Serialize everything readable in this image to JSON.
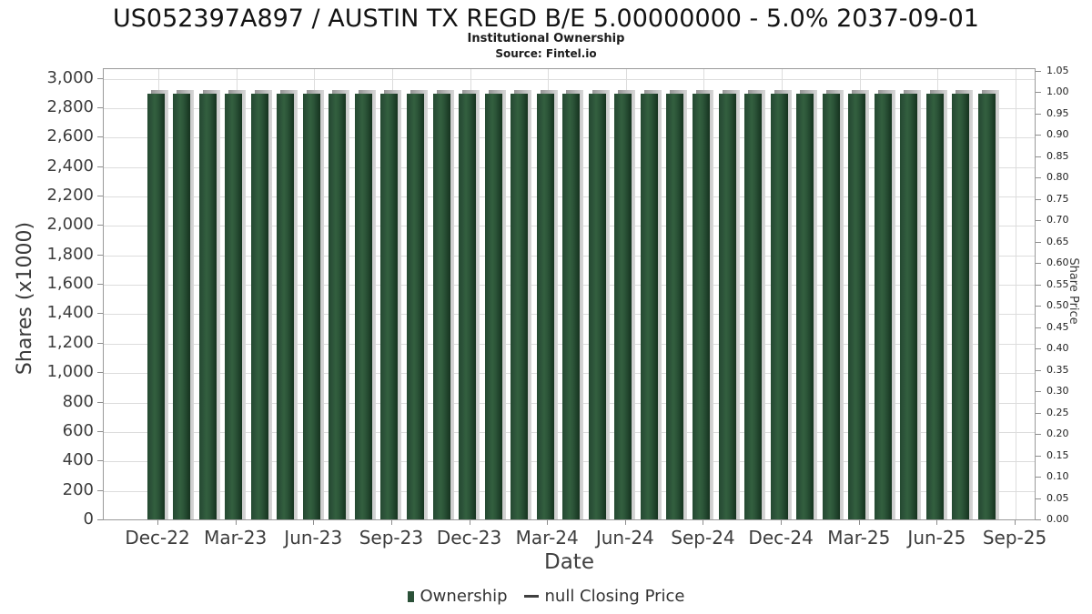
{
  "title": "US052397A897 / AUSTIN TX REGD B/E 5.00000000 - 5.0% 2037-09-01",
  "subtitle": "Institutional Ownership",
  "source": "Source: Fintel.io",
  "chart_data": {
    "type": "bar",
    "title": "US052397A897 / AUSTIN TX REGD B/E 5.00000000 - 5.0% 2037-09-01",
    "subtitle": "Institutional Ownership",
    "source": "Source: Fintel.io",
    "xlabel": "Date",
    "ylabel_left": "Shares (x1000)",
    "ylabel_right": "Share Price",
    "left_axis": {
      "min": 0,
      "max": 3000,
      "step": 200,
      "tick_labels": [
        "0",
        "200",
        "400",
        "600",
        "800",
        "1,000",
        "1,200",
        "1,400",
        "1,600",
        "1,800",
        "2,000",
        "2,200",
        "2,400",
        "2,600",
        "2,800",
        "3,000"
      ]
    },
    "right_axis": {
      "min": 0,
      "max": 1.05,
      "step": 0.05,
      "tick_labels": [
        "0.00",
        "0.05",
        "0.10",
        "0.15",
        "0.20",
        "0.25",
        "0.30",
        "0.35",
        "0.40",
        "0.45",
        "0.50",
        "0.55",
        "0.60",
        "0.65",
        "0.70",
        "0.75",
        "0.80",
        "0.85",
        "0.90",
        "0.95",
        "1.00",
        "1.05"
      ]
    },
    "x_tick_labels": [
      "Dec-22",
      "Mar-23",
      "Jun-23",
      "Sep-23",
      "Dec-23",
      "Mar-24",
      "Jun-24",
      "Sep-24",
      "Dec-24",
      "Mar-25",
      "Jun-25",
      "Sep-25"
    ],
    "categories": [
      "Dec-22",
      "Jan-23",
      "Feb-23",
      "Mar-23",
      "Apr-23",
      "May-23",
      "Jun-23",
      "Jul-23",
      "Aug-23",
      "Sep-23",
      "Oct-23",
      "Nov-23",
      "Dec-23",
      "Jan-24",
      "Feb-24",
      "Mar-24",
      "Apr-24",
      "May-24",
      "Jun-24",
      "Jul-24",
      "Aug-24",
      "Sep-24",
      "Oct-24",
      "Nov-24",
      "Dec-24",
      "Jan-25",
      "Feb-25",
      "Mar-25",
      "Apr-25",
      "May-25",
      "Jun-25",
      "Jul-25",
      "Aug-25"
    ],
    "series": [
      {
        "name": "Ownership",
        "type": "bar",
        "values": [
          2900,
          2900,
          2900,
          2900,
          2900,
          2900,
          2900,
          2900,
          2900,
          2900,
          2900,
          2900,
          2900,
          2900,
          2900,
          2900,
          2900,
          2900,
          2900,
          2900,
          2900,
          2900,
          2900,
          2900,
          2900,
          2900,
          2900,
          2900,
          2900,
          2900,
          2900,
          2900,
          2900
        ]
      },
      {
        "name": "null Closing Price",
        "type": "line",
        "values": []
      }
    ],
    "legend": [
      {
        "label": "Ownership",
        "marker": "square",
        "color": "#2b5138"
      },
      {
        "label": "null Closing Price",
        "marker": "dash",
        "color": "#3f3f3f"
      }
    ],
    "grid": "on",
    "legend_position": "bottom",
    "colors": {
      "bar_main": "#2b5138",
      "bar_light": "#33603f",
      "bar_dark": "#16331f",
      "bar_shadow": "#9b9b9b",
      "gridline": "#dcdcdc",
      "frame": "#9a9a9a",
      "text": "#3a3a3a"
    }
  }
}
